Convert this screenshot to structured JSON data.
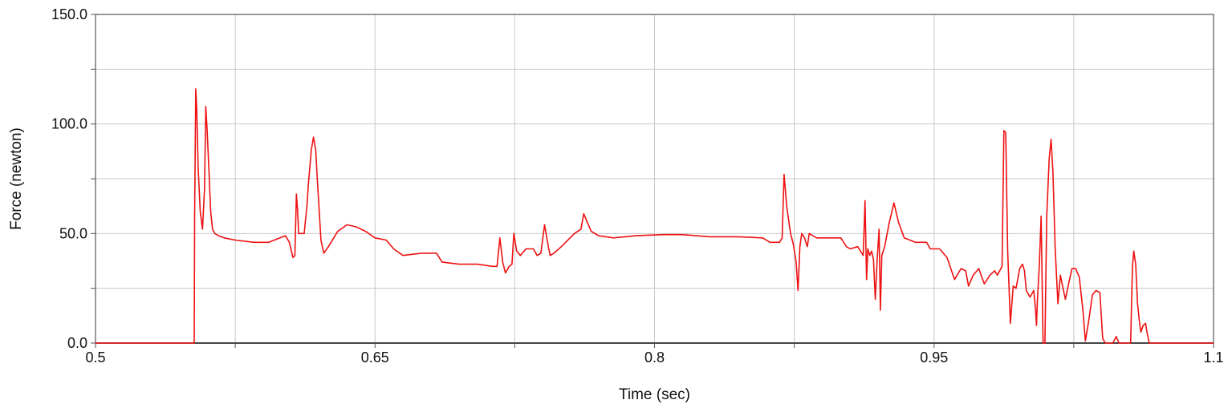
{
  "chart_data": {
    "type": "line",
    "title": "",
    "xlabel": "Time (sec)",
    "ylabel": "Force (newton)",
    "xlim": [
      0.5,
      1.1
    ],
    "ylim": [
      0,
      150
    ],
    "grid": true,
    "x_ticks": [
      0.5,
      0.575,
      0.65,
      0.725,
      0.8,
      0.875,
      0.95,
      1.025,
      1.1
    ],
    "x_tick_labels": [
      "0.5",
      "",
      "0.65",
      "",
      "0.8",
      "",
      "0.95",
      "",
      "1.1"
    ],
    "y_ticks": [
      0,
      25,
      50,
      75,
      100,
      125,
      150
    ],
    "y_tick_labels": [
      "0.0",
      "",
      "50.0",
      "",
      "100.0",
      "",
      "150.0"
    ],
    "series": [
      {
        "color": "#ee1111",
        "points": [
          [
            0.5,
            0
          ],
          [
            0.553,
            0
          ],
          [
            0.5532,
            58
          ],
          [
            0.5538,
            116
          ],
          [
            0.5543,
            107
          ],
          [
            0.5551,
            80
          ],
          [
            0.5562,
            60
          ],
          [
            0.5574,
            52
          ],
          [
            0.5585,
            70
          ],
          [
            0.5592,
            108
          ],
          [
            0.5599,
            97
          ],
          [
            0.5608,
            80
          ],
          [
            0.5618,
            60
          ],
          [
            0.5628,
            52
          ],
          [
            0.564,
            50
          ],
          [
            0.566,
            49
          ],
          [
            0.569,
            48
          ],
          [
            0.575,
            47
          ],
          [
            0.585,
            46
          ],
          [
            0.593,
            46
          ],
          [
            0.599,
            48
          ],
          [
            0.602,
            49
          ],
          [
            0.604,
            46
          ],
          [
            0.606,
            39
          ],
          [
            0.607,
            40
          ],
          [
            0.6078,
            68
          ],
          [
            0.6084,
            61
          ],
          [
            0.609,
            50
          ],
          [
            0.611,
            50
          ],
          [
            0.612,
            50
          ],
          [
            0.6135,
            63
          ],
          [
            0.6142,
            72
          ],
          [
            0.6158,
            88
          ],
          [
            0.617,
            94
          ],
          [
            0.6182,
            88
          ],
          [
            0.619,
            75
          ],
          [
            0.621,
            47
          ],
          [
            0.6225,
            41
          ],
          [
            0.625,
            44
          ],
          [
            0.63,
            51
          ],
          [
            0.635,
            54
          ],
          [
            0.64,
            53
          ],
          [
            0.645,
            51
          ],
          [
            0.65,
            48
          ],
          [
            0.656,
            47
          ],
          [
            0.66,
            43
          ],
          [
            0.665,
            40
          ],
          [
            0.675,
            41
          ],
          [
            0.683,
            41
          ],
          [
            0.686,
            37
          ],
          [
            0.695,
            36
          ],
          [
            0.705,
            36
          ],
          [
            0.713,
            35
          ],
          [
            0.7155,
            35
          ],
          [
            0.717,
            48
          ],
          [
            0.7185,
            37
          ],
          [
            0.72,
            32
          ],
          [
            0.722,
            35
          ],
          [
            0.7235,
            36
          ],
          [
            0.7245,
            50
          ],
          [
            0.726,
            42
          ],
          [
            0.728,
            40
          ],
          [
            0.731,
            43
          ],
          [
            0.735,
            43
          ],
          [
            0.737,
            40
          ],
          [
            0.739,
            41
          ],
          [
            0.741,
            54
          ],
          [
            0.743,
            44
          ],
          [
            0.744,
            40
          ],
          [
            0.746,
            41
          ],
          [
            0.75,
            44
          ],
          [
            0.757,
            50
          ],
          [
            0.7605,
            52
          ],
          [
            0.762,
            59
          ],
          [
            0.764,
            55
          ],
          [
            0.766,
            51
          ],
          [
            0.77,
            49
          ],
          [
            0.778,
            48
          ],
          [
            0.79,
            49
          ],
          [
            0.805,
            49.5
          ],
          [
            0.815,
            49.5
          ],
          [
            0.83,
            48.5
          ],
          [
            0.845,
            48.5
          ],
          [
            0.858,
            48
          ],
          [
            0.862,
            46
          ],
          [
            0.867,
            46
          ],
          [
            0.8685,
            48
          ],
          [
            0.8695,
            77
          ],
          [
            0.871,
            62
          ],
          [
            0.873,
            50
          ],
          [
            0.8745,
            45
          ],
          [
            0.876,
            37
          ],
          [
            0.877,
            24
          ],
          [
            0.878,
            44
          ],
          [
            0.879,
            50
          ],
          [
            0.8805,
            48
          ],
          [
            0.882,
            44
          ],
          [
            0.883,
            50
          ],
          [
            0.887,
            48
          ],
          [
            0.894,
            48
          ],
          [
            0.9,
            48
          ],
          [
            0.903,
            44
          ],
          [
            0.905,
            43
          ],
          [
            0.909,
            44
          ],
          [
            0.912,
            40
          ],
          [
            0.913,
            65
          ],
          [
            0.9138,
            29
          ],
          [
            0.9145,
            43
          ],
          [
            0.9155,
            40
          ],
          [
            0.9165,
            42
          ],
          [
            0.9175,
            38
          ],
          [
            0.9185,
            20
          ],
          [
            0.9195,
            38
          ],
          [
            0.9205,
            52
          ],
          [
            0.9212,
            15
          ],
          [
            0.922,
            40
          ],
          [
            0.9235,
            44
          ],
          [
            0.926,
            55
          ],
          [
            0.9285,
            64
          ],
          [
            0.931,
            55
          ],
          [
            0.934,
            48
          ],
          [
            0.94,
            46
          ],
          [
            0.946,
            46
          ],
          [
            0.948,
            43
          ],
          [
            0.953,
            43
          ],
          [
            0.957,
            39
          ],
          [
            0.961,
            29
          ],
          [
            0.9645,
            34
          ],
          [
            0.967,
            33
          ],
          [
            0.9685,
            26
          ],
          [
            0.971,
            31
          ],
          [
            0.974,
            34
          ],
          [
            0.977,
            27
          ],
          [
            0.98,
            31
          ],
          [
            0.9825,
            33
          ],
          [
            0.984,
            31
          ],
          [
            0.9865,
            35
          ],
          [
            0.9875,
            97
          ],
          [
            0.9885,
            96
          ],
          [
            0.9895,
            42
          ],
          [
            0.991,
            9
          ],
          [
            0.9925,
            26
          ],
          [
            0.994,
            25
          ],
          [
            0.996,
            34
          ],
          [
            0.9975,
            36
          ],
          [
            0.9985,
            33
          ],
          [
            0.9995,
            24
          ],
          [
            1.0015,
            21
          ],
          [
            1.0035,
            24
          ],
          [
            1.0045,
            15
          ],
          [
            1.005,
            8
          ],
          [
            1.0055,
            20
          ],
          [
            1.0065,
            35
          ],
          [
            1.0075,
            58
          ],
          [
            1.0085,
            0
          ],
          [
            1.0095,
            0
          ],
          [
            1.0105,
            58
          ],
          [
            1.0118,
            84
          ],
          [
            1.0128,
            93
          ],
          [
            1.0138,
            78
          ],
          [
            1.015,
            43
          ],
          [
            1.0165,
            18
          ],
          [
            1.0178,
            31
          ],
          [
            1.019,
            26
          ],
          [
            1.0205,
            20
          ],
          [
            1.0222,
            27
          ],
          [
            1.024,
            34
          ],
          [
            1.026,
            34
          ],
          [
            1.028,
            30
          ],
          [
            1.03,
            14
          ],
          [
            1.0312,
            1
          ],
          [
            1.033,
            10
          ],
          [
            1.035,
            22
          ],
          [
            1.037,
            24
          ],
          [
            1.039,
            23
          ],
          [
            1.0405,
            2
          ],
          [
            1.042,
            0
          ],
          [
            1.046,
            0
          ],
          [
            1.0478,
            3
          ],
          [
            1.0492,
            0
          ],
          [
            1.0555,
            0
          ],
          [
            1.0565,
            35
          ],
          [
            1.0572,
            42
          ],
          [
            1.0582,
            36
          ],
          [
            1.0592,
            18
          ],
          [
            1.0602,
            10
          ],
          [
            1.061,
            5
          ],
          [
            1.0622,
            8
          ],
          [
            1.0635,
            9
          ],
          [
            1.0645,
            4
          ],
          [
            1.0655,
            0
          ],
          [
            1.1,
            0
          ]
        ]
      }
    ]
  }
}
